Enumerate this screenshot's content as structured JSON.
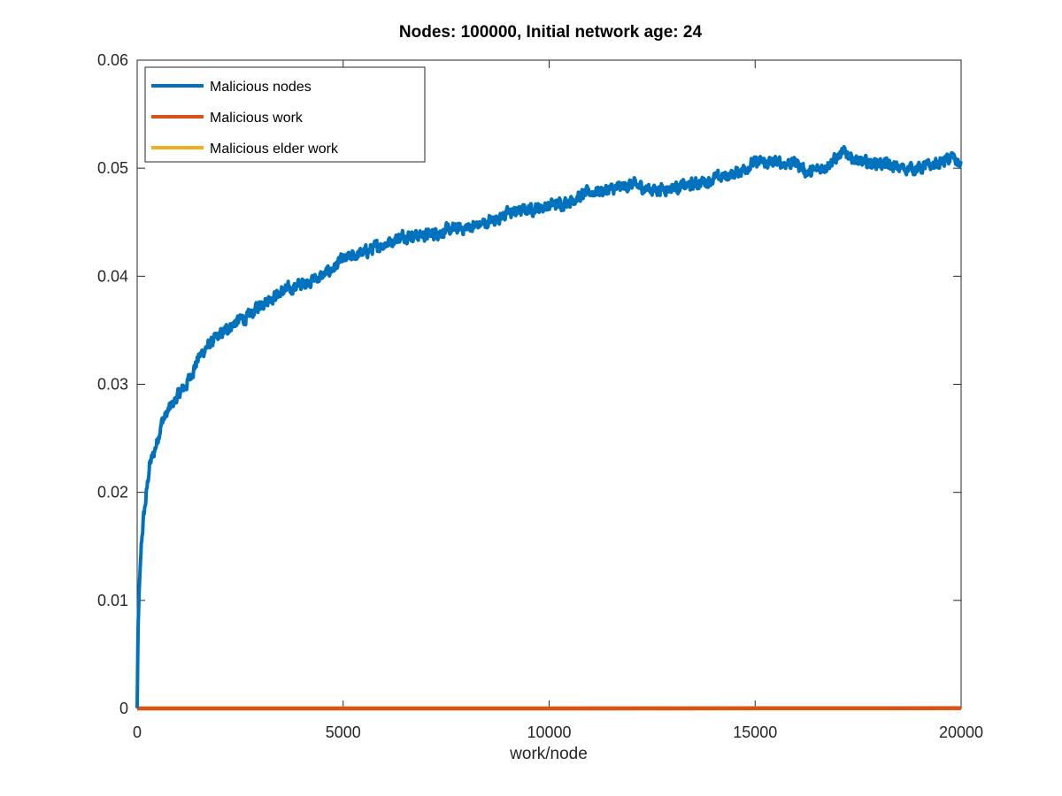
{
  "chart_data": {
    "type": "line",
    "title": "Nodes: 100000, Initial network age: 24",
    "xlabel": "work/node",
    "ylabel": "",
    "xlim": [
      0,
      20000
    ],
    "ylim": [
      0,
      0.06
    ],
    "x_ticks": [
      0,
      5000,
      10000,
      15000,
      20000
    ],
    "x_tick_labels": [
      "0",
      "5000",
      "10000",
      "15000",
      "20000"
    ],
    "y_ticks": [
      0,
      0.01,
      0.02,
      0.03,
      0.04,
      0.05,
      0.06
    ],
    "y_tick_labels": [
      "0",
      "0.01",
      "0.02",
      "0.03",
      "0.04",
      "0.05",
      "0.06"
    ],
    "grid": false,
    "legend_position": "top-left",
    "series": [
      {
        "name": "Malicious nodes",
        "color": "#0072BD",
        "x": [
          0,
          20,
          50,
          100,
          150,
          200,
          300,
          400,
          500,
          600,
          800,
          1000,
          1200,
          1500,
          1700,
          2000,
          2300,
          2500,
          2700,
          3000,
          3500,
          4000,
          4500,
          5000,
          5500,
          6000,
          6500,
          7000,
          7500,
          8000,
          8500,
          9000,
          9500,
          10000,
          10500,
          11000,
          11500,
          12000,
          12500,
          13000,
          13500,
          14000,
          14500,
          15000,
          15500,
          16000,
          16300,
          16700,
          17000,
          17200,
          17500,
          18000,
          18500,
          19000,
          19500,
          19800,
          20000
        ],
        "values": [
          0,
          0.007,
          0.011,
          0.015,
          0.0175,
          0.019,
          0.0225,
          0.0235,
          0.025,
          0.0265,
          0.0278,
          0.029,
          0.03,
          0.0325,
          0.0335,
          0.0345,
          0.0355,
          0.036,
          0.0362,
          0.0375,
          0.0385,
          0.0393,
          0.04,
          0.0415,
          0.0422,
          0.043,
          0.0438,
          0.0438,
          0.0442,
          0.0445,
          0.045,
          0.0458,
          0.0462,
          0.0465,
          0.047,
          0.0478,
          0.048,
          0.0485,
          0.048,
          0.0482,
          0.0485,
          0.049,
          0.0495,
          0.0505,
          0.0505,
          0.0505,
          0.0495,
          0.0502,
          0.051,
          0.0515,
          0.0505,
          0.0505,
          0.05,
          0.05,
          0.0505,
          0.051,
          0.0502
        ]
      },
      {
        "name": "Malicious work",
        "color": "#D95319",
        "x": [
          0,
          5000,
          10000,
          13000,
          15000,
          17500,
          20000
        ],
        "values": [
          0,
          0,
          0,
          1e-05,
          2e-05,
          2e-05,
          3e-05
        ]
      },
      {
        "name": "Malicious elder work",
        "color": "#EDB120",
        "x": [
          0,
          5000,
          10000,
          15000,
          17500,
          20000
        ],
        "values": [
          0,
          0,
          0,
          0,
          0,
          1e-05
        ]
      }
    ]
  }
}
